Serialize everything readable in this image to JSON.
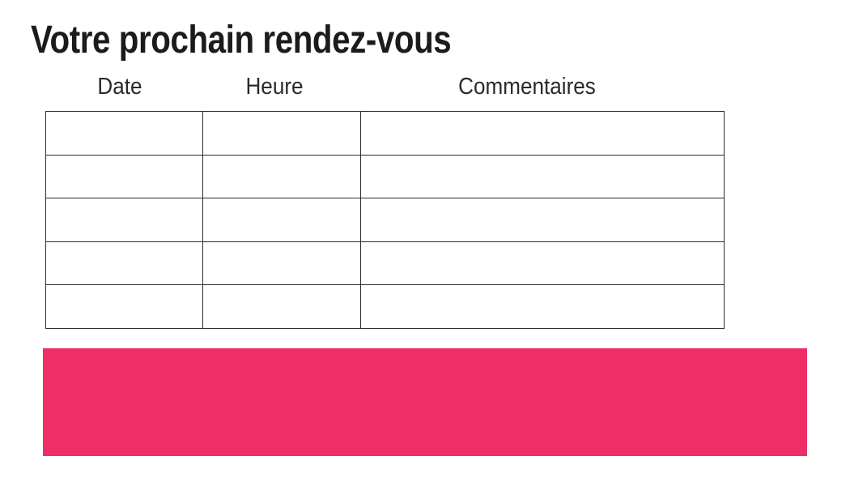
{
  "page": {
    "title": "Votre prochain rendez-vous"
  },
  "appointments_table": {
    "columns": [
      {
        "label": "Date"
      },
      {
        "label": "Heure"
      },
      {
        "label": "Commentaires"
      }
    ],
    "rows": [
      [
        "",
        "",
        ""
      ],
      [
        "",
        "",
        ""
      ],
      [
        "",
        "",
        ""
      ],
      [
        "",
        "",
        ""
      ],
      [
        "",
        "",
        ""
      ]
    ]
  },
  "banner": {
    "text": ""
  },
  "colors": {
    "accent_pink": "#ED2E67",
    "table_border": "#2E2E2E",
    "title_text": "#1B1B1B",
    "header_text": "#2A2A2A"
  }
}
